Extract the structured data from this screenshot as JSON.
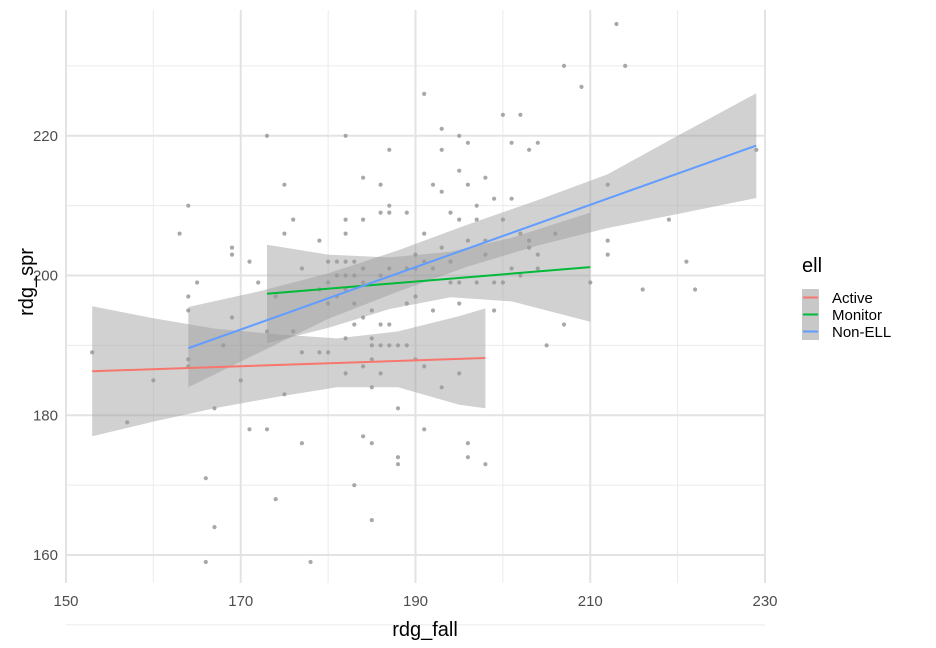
{
  "chart_data": {
    "type": "scatter",
    "xlabel": "rdg_fall",
    "ylabel": "rdg_spr",
    "xlim": [
      150,
      230
    ],
    "ylim": [
      156,
      238
    ],
    "x_ticks": [
      150,
      170,
      190,
      210,
      230
    ],
    "y_ticks": [
      160,
      180,
      200,
      220
    ],
    "grid": true,
    "legend": {
      "title": "ell",
      "position": "right",
      "entries": [
        "Active",
        "Monitor",
        "Non-ELL"
      ]
    },
    "points": [
      [
        153,
        189
      ],
      [
        157,
        179
      ],
      [
        160,
        185
      ],
      [
        163,
        206
      ],
      [
        164,
        210
      ],
      [
        164,
        197
      ],
      [
        164,
        195
      ],
      [
        164,
        188
      ],
      [
        164,
        187
      ],
      [
        165,
        199
      ],
      [
        166,
        171
      ],
      [
        166,
        159
      ],
      [
        167,
        164
      ],
      [
        167,
        181
      ],
      [
        168,
        190
      ],
      [
        169,
        204
      ],
      [
        169,
        203
      ],
      [
        169,
        194
      ],
      [
        170,
        185
      ],
      [
        171,
        202
      ],
      [
        171,
        178
      ],
      [
        172,
        199
      ],
      [
        173,
        220
      ],
      [
        173,
        192
      ],
      [
        173,
        178
      ],
      [
        174,
        197
      ],
      [
        174,
        168
      ],
      [
        175,
        213
      ],
      [
        175,
        206
      ],
      [
        175,
        183
      ],
      [
        176,
        208
      ],
      [
        176,
        192
      ],
      [
        177,
        201
      ],
      [
        177,
        189
      ],
      [
        177,
        176
      ],
      [
        178,
        159
      ],
      [
        179,
        205
      ],
      [
        179,
        198
      ],
      [
        179,
        189
      ],
      [
        180,
        202
      ],
      [
        180,
        199
      ],
      [
        180,
        196
      ],
      [
        180,
        189
      ],
      [
        181,
        202
      ],
      [
        181,
        200
      ],
      [
        181,
        197
      ],
      [
        182,
        220
      ],
      [
        182,
        208
      ],
      [
        182,
        206
      ],
      [
        182,
        202
      ],
      [
        182,
        200
      ],
      [
        182,
        198
      ],
      [
        182,
        191
      ],
      [
        182,
        186
      ],
      [
        183,
        202
      ],
      [
        183,
        200
      ],
      [
        183,
        196
      ],
      [
        183,
        193
      ],
      [
        183,
        170
      ],
      [
        184,
        214
      ],
      [
        184,
        208
      ],
      [
        184,
        201
      ],
      [
        184,
        199
      ],
      [
        184,
        194
      ],
      [
        184,
        187
      ],
      [
        184,
        177
      ],
      [
        185,
        195
      ],
      [
        185,
        191
      ],
      [
        185,
        190
      ],
      [
        185,
        188
      ],
      [
        185,
        184
      ],
      [
        185,
        176
      ],
      [
        185,
        165
      ],
      [
        186,
        213
      ],
      [
        186,
        209
      ],
      [
        186,
        200
      ],
      [
        186,
        193
      ],
      [
        186,
        190
      ],
      [
        186,
        186
      ],
      [
        187,
        218
      ],
      [
        187,
        210
      ],
      [
        187,
        209
      ],
      [
        187,
        201
      ],
      [
        187,
        193
      ],
      [
        187,
        190
      ],
      [
        188,
        181
      ],
      [
        188,
        174
      ],
      [
        188,
        173
      ],
      [
        188,
        190
      ],
      [
        189,
        209
      ],
      [
        189,
        201
      ],
      [
        189,
        196
      ],
      [
        189,
        190
      ],
      [
        190,
        203
      ],
      [
        190,
        201
      ],
      [
        190,
        197
      ],
      [
        190,
        188
      ],
      [
        191,
        226
      ],
      [
        191,
        206
      ],
      [
        191,
        202
      ],
      [
        191,
        187
      ],
      [
        191,
        178
      ],
      [
        192,
        213
      ],
      [
        192,
        201
      ],
      [
        192,
        195
      ],
      [
        193,
        221
      ],
      [
        193,
        218
      ],
      [
        193,
        212
      ],
      [
        193,
        204
      ],
      [
        193,
        184
      ],
      [
        194,
        209
      ],
      [
        194,
        202
      ],
      [
        194,
        199
      ],
      [
        195,
        220
      ],
      [
        195,
        215
      ],
      [
        195,
        208
      ],
      [
        195,
        199
      ],
      [
        195,
        196
      ],
      [
        195,
        186
      ],
      [
        196,
        219
      ],
      [
        196,
        213
      ],
      [
        196,
        205
      ],
      [
        196,
        176
      ],
      [
        196,
        174
      ],
      [
        197,
        210
      ],
      [
        197,
        208
      ],
      [
        197,
        199
      ],
      [
        198,
        214
      ],
      [
        198,
        205
      ],
      [
        198,
        173
      ],
      [
        198,
        203
      ],
      [
        199,
        211
      ],
      [
        199,
        199
      ],
      [
        199,
        195
      ],
      [
        200,
        223
      ],
      [
        200,
        208
      ],
      [
        200,
        199
      ],
      [
        201,
        219
      ],
      [
        201,
        211
      ],
      [
        201,
        201
      ],
      [
        202,
        223
      ],
      [
        202,
        206
      ],
      [
        202,
        200
      ],
      [
        203,
        218
      ],
      [
        203,
        205
      ],
      [
        203,
        204
      ],
      [
        204,
        219
      ],
      [
        204,
        203
      ],
      [
        204,
        201
      ],
      [
        205,
        190
      ],
      [
        206,
        206
      ],
      [
        207,
        230
      ],
      [
        207,
        193
      ],
      [
        209,
        227
      ],
      [
        210,
        199
      ],
      [
        212,
        213
      ],
      [
        212,
        205
      ],
      [
        212,
        203
      ],
      [
        213,
        236
      ],
      [
        214,
        230
      ],
      [
        216,
        198
      ],
      [
        219,
        208
      ],
      [
        221,
        202
      ],
      [
        222,
        198
      ],
      [
        229,
        218
      ]
    ],
    "series": [
      {
        "name": "Active",
        "color": "#F8766D",
        "line": [
          [
            153,
            186.3
          ],
          [
            198,
            188.2
          ]
        ],
        "band": {
          "x": [
            153,
            160,
            167,
            174,
            181,
            188,
            195,
            198
          ],
          "upper": [
            195.6,
            193.9,
            192.4,
            191.6,
            191.0,
            192.0,
            194.2,
            195.3
          ],
          "lower": [
            177.0,
            179.1,
            181.0,
            182.6,
            184.0,
            184.0,
            181.5,
            181.0
          ]
        }
      },
      {
        "name": "Monitor",
        "color": "#00BA38",
        "line": [
          [
            173,
            197.4
          ],
          [
            210,
            201.2
          ]
        ],
        "band": {
          "x": [
            173,
            180,
            187,
            194,
            201,
            210
          ],
          "upper": [
            204.4,
            203.0,
            202.6,
            203.4,
            205.4,
            209.0
          ],
          "lower": [
            190.3,
            192.5,
            195.2,
            196.9,
            196.3,
            193.4
          ]
        }
      },
      {
        "name": "Non-ELL",
        "color": "#619CFF",
        "line": [
          [
            164,
            189.6
          ],
          [
            229,
            218.6
          ]
        ],
        "band": {
          "x": [
            164,
            172,
            180,
            188,
            196,
            204,
            212,
            220,
            229
          ],
          "upper": [
            195.5,
            197.7,
            200.3,
            203.6,
            207.3,
            210.8,
            214.5,
            220.0,
            226.1
          ],
          "lower": [
            184.0,
            188.9,
            193.8,
            197.7,
            201.3,
            204.3,
            206.8,
            208.8,
            211.1
          ]
        }
      }
    ]
  }
}
